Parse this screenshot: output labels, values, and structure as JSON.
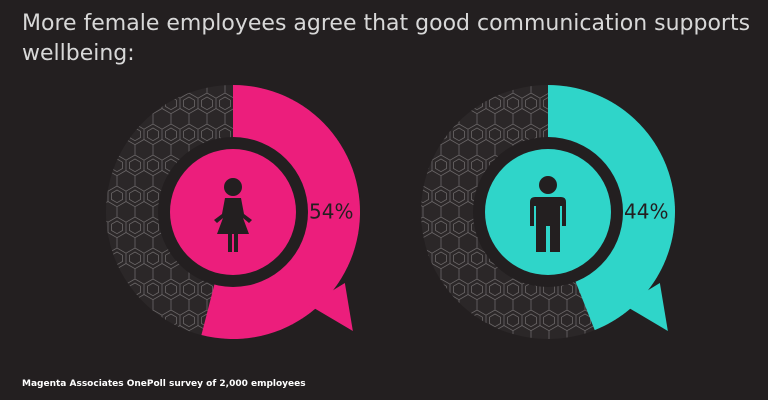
{
  "title": "More female employees agree that good communication supports wellbeing:",
  "source": "Magenta Associates OnePoll survey of 2,000 employees",
  "chart_data": [
    {
      "type": "pie",
      "values": [
        54
      ],
      "value_labels": [
        "54%"
      ],
      "color": "#ec1e7c"
    },
    {
      "type": "pie",
      "values": [
        44
      ],
      "value_labels": [
        "44%"
      ],
      "color": "#2fd5c9"
    }
  ]
}
